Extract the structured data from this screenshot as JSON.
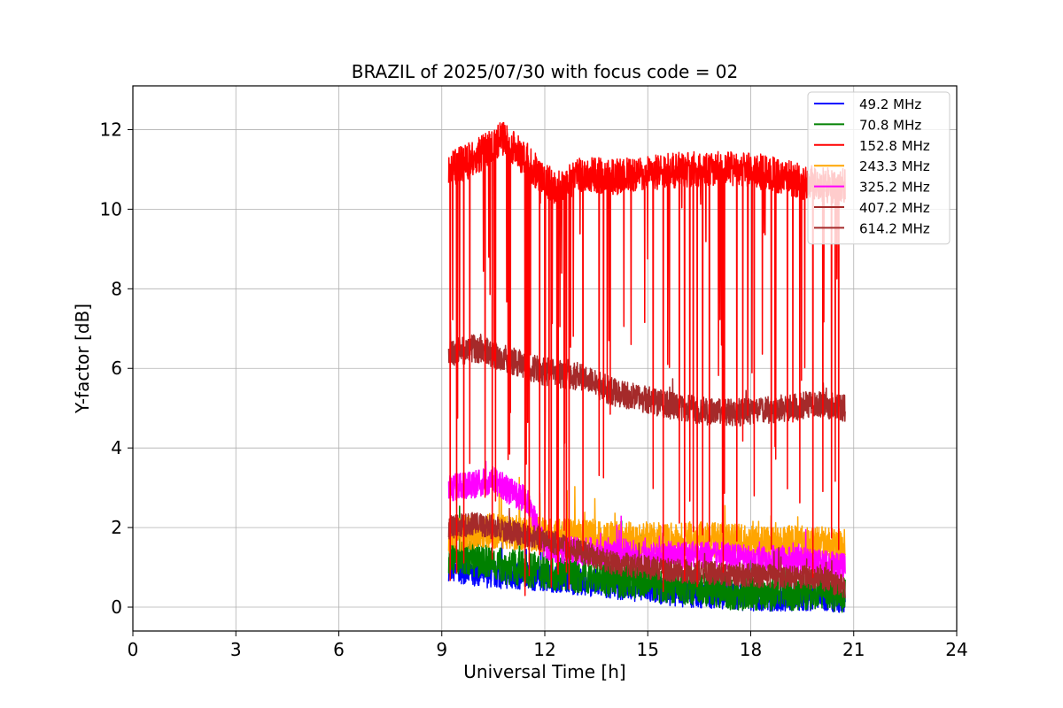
{
  "chart_data": {
    "type": "line",
    "title": "BRAZIL of 2025/07/30 with focus code = 02",
    "xlabel": "Universal Time [h]",
    "ylabel": "Y-factor [dB]",
    "xlim": [
      0,
      24
    ],
    "ylim": [
      -0.6,
      13.1
    ],
    "xticks": [
      0,
      3,
      6,
      9,
      12,
      15,
      18,
      21,
      24
    ],
    "yticks": [
      0,
      2,
      4,
      6,
      8,
      10,
      12
    ],
    "grid": true,
    "legend_position": "top-right",
    "series": [
      {
        "name": " 49.2 MHz",
        "color": "#0000ff",
        "x": [
          9.2,
          10.0,
          11.0,
          12.0,
          13.0,
          14.0,
          15.0,
          16.0,
          17.0,
          18.0,
          19.0,
          20.0,
          20.75
        ],
        "y": [
          1.0,
          0.85,
          0.8,
          0.75,
          0.65,
          0.55,
          0.45,
          0.35,
          0.3,
          0.25,
          0.25,
          0.25,
          0.2
        ]
      },
      {
        "name": " 70.8 MHz",
        "color": "#008000",
        "x": [
          9.2,
          10.0,
          11.0,
          12.0,
          13.0,
          14.0,
          15.0,
          16.0,
          17.0,
          18.0,
          19.0,
          20.0,
          20.75
        ],
        "y": [
          1.3,
          1.2,
          1.0,
          0.9,
          0.8,
          0.7,
          0.6,
          0.5,
          0.4,
          0.35,
          0.35,
          0.4,
          0.3
        ]
      },
      {
        "name": "152.8 MHz",
        "color": "#ff0000",
        "x": [
          9.2,
          10.0,
          10.8,
          11.5,
          12.0,
          12.5,
          13.0,
          14.0,
          15.0,
          16.0,
          17.0,
          18.0,
          19.0,
          20.0,
          20.75
        ],
        "y": [
          11.0,
          11.3,
          11.8,
          11.2,
          10.7,
          10.5,
          10.9,
          10.8,
          10.9,
          11.0,
          11.0,
          11.0,
          10.8,
          10.6,
          10.6
        ]
      },
      {
        "name": "243.3 MHz",
        "color": "#ffa500",
        "x": [
          9.2,
          10.0,
          11.0,
          12.0,
          13.0,
          14.0,
          15.0,
          16.0,
          17.0,
          18.0,
          19.0,
          20.0,
          20.75
        ],
        "y": [
          1.8,
          1.9,
          1.9,
          1.8,
          1.75,
          1.7,
          1.7,
          1.7,
          1.7,
          1.6,
          1.6,
          1.6,
          1.5
        ]
      },
      {
        "name": "325.2 MHz",
        "color": "#ff00ff",
        "x": [
          9.2,
          10.0,
          10.5,
          11.0,
          11.5,
          12.0,
          13.0,
          14.0,
          15.0,
          16.0,
          17.0,
          18.0,
          19.0,
          20.0,
          20.75
        ],
        "y": [
          3.0,
          3.1,
          3.2,
          2.9,
          2.7,
          1.5,
          1.4,
          1.4,
          1.3,
          1.3,
          1.3,
          1.2,
          1.2,
          1.1,
          1.0
        ]
      },
      {
        "name": "407.2 MHz",
        "color": "#a52a2a",
        "x": [
          9.2,
          10.0,
          11.0,
          12.0,
          13.0,
          14.0,
          15.0,
          16.0,
          17.0,
          18.0,
          19.0,
          20.0,
          20.75
        ],
        "y": [
          6.4,
          6.5,
          6.2,
          5.9,
          5.8,
          5.4,
          5.2,
          5.0,
          4.9,
          4.9,
          5.0,
          5.1,
          5.0
        ]
      },
      {
        "name": "614.2 MHz",
        "color": "#a52a2a",
        "x": [
          9.2,
          10.0,
          11.0,
          12.0,
          13.0,
          14.0,
          15.0,
          16.0,
          17.0,
          18.0,
          19.0,
          20.0,
          20.75
        ],
        "y": [
          2.0,
          2.1,
          1.9,
          1.7,
          1.4,
          1.1,
          1.0,
          0.9,
          0.85,
          0.8,
          0.75,
          0.75,
          0.5
        ]
      }
    ]
  }
}
